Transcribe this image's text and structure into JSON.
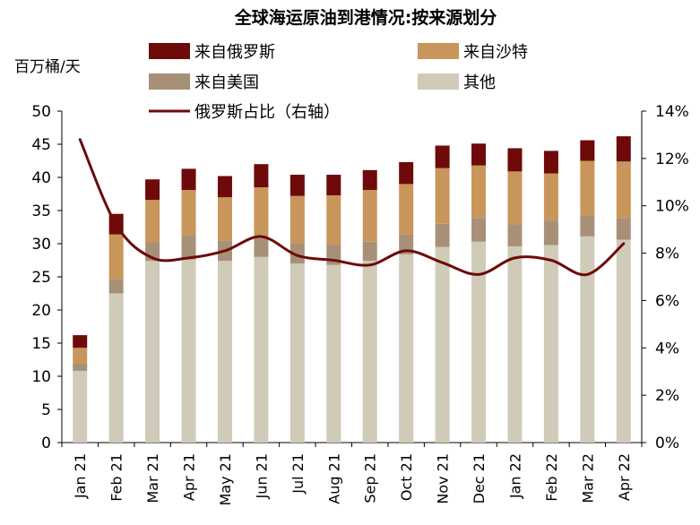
{
  "chart_data": {
    "type": "bar",
    "title": "全球海运原油到港情况:按来源划分",
    "ylabel": "百万桶/天",
    "y2label": "",
    "categories": [
      "Jan 21",
      "Feb 21",
      "Mar 21",
      "Apr 21",
      "May 21",
      "Jun 21",
      "Jul 21",
      "Aug 21",
      "Sep 21",
      "Oct 21",
      "Nov 21",
      "Dec 21",
      "Jan 22",
      "Feb 22",
      "Mar 22",
      "Apr 22"
    ],
    "ylim": [
      0,
      50
    ],
    "yticks": [
      "0",
      "5",
      "10",
      "15",
      "20",
      "25",
      "30",
      "35",
      "40",
      "45",
      "50"
    ],
    "y2lim": [
      0,
      14
    ],
    "y2ticks": [
      "0%",
      "2%",
      "4%",
      "6%",
      "8%",
      "10%",
      "12%",
      "14%"
    ],
    "stacked": true,
    "grid": false,
    "legend_position": "top",
    "series": [
      {
        "name": "其他",
        "kind": "bar",
        "axis": "left",
        "color": "#CFCBB8",
        "values": [
          10.8,
          22.5,
          27.4,
          27.6,
          27.4,
          28.0,
          27.0,
          26.8,
          27.4,
          28.4,
          29.5,
          30.3,
          29.6,
          29.8,
          31.1,
          30.6
        ]
      },
      {
        "name": "来自美国",
        "kind": "bar",
        "axis": "left",
        "color": "#A89078",
        "values": [
          1.1,
          2.2,
          2.8,
          3.7,
          3.1,
          2.8,
          3.0,
          3.0,
          2.9,
          3.0,
          3.5,
          3.6,
          3.3,
          3.7,
          3.2,
          3.3
        ]
      },
      {
        "name": "来自沙特",
        "kind": "bar",
        "axis": "left",
        "color": "#C8965A",
        "values": [
          2.4,
          6.7,
          6.4,
          6.8,
          6.5,
          7.7,
          7.2,
          7.5,
          7.8,
          7.6,
          8.4,
          7.9,
          8.0,
          7.1,
          8.2,
          8.5
        ]
      },
      {
        "name": "来自俄罗斯",
        "kind": "bar",
        "axis": "left",
        "color": "#6E0A0A",
        "values": [
          1.9,
          3.1,
          3.1,
          3.2,
          3.2,
          3.5,
          3.2,
          3.1,
          3.0,
          3.3,
          3.4,
          3.3,
          3.5,
          3.4,
          3.1,
          3.8
        ]
      },
      {
        "name": "俄罗斯占比（右轴）",
        "kind": "line",
        "axis": "right",
        "color": "#6E0A0A",
        "values": [
          12.8,
          9.2,
          7.8,
          7.8,
          8.1,
          8.7,
          7.9,
          7.7,
          7.5,
          8.1,
          7.6,
          7.1,
          7.8,
          7.7,
          7.1,
          8.4
        ]
      }
    ],
    "legend": {
      "rows": [
        [
          "来自俄罗斯",
          "来自沙特"
        ],
        [
          "来自美国",
          "其他"
        ],
        [
          "俄罗斯占比（右轴）"
        ]
      ]
    }
  }
}
